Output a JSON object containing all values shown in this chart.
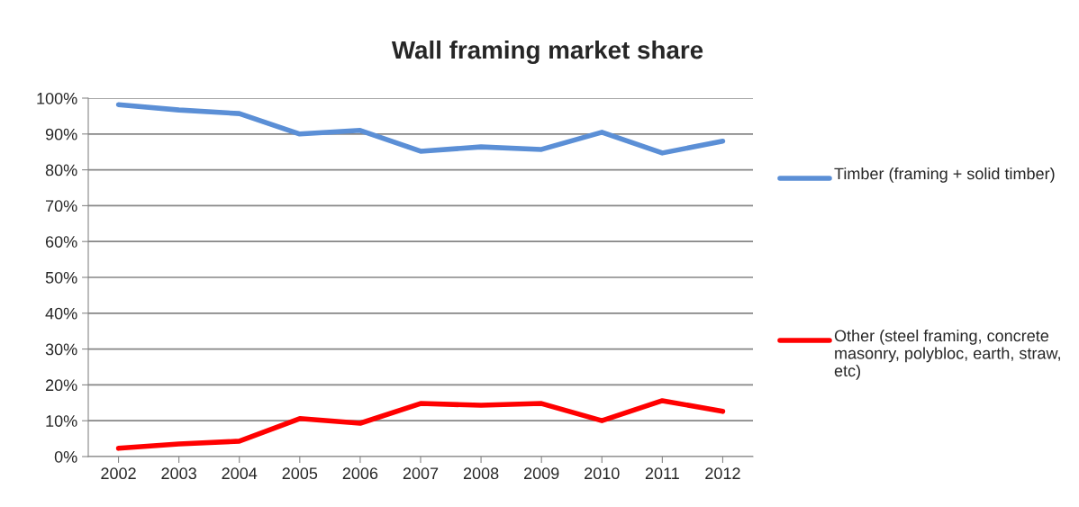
{
  "chart_data": {
    "type": "line",
    "title": "Wall framing market share",
    "categories": [
      "2002",
      "2003",
      "2004",
      "2005",
      "2006",
      "2007",
      "2008",
      "2009",
      "2010",
      "2011",
      "2012"
    ],
    "series": [
      {
        "name": "Timber (framing + solid timber)",
        "color": "#5b8fd6",
        "values": [
          98.2,
          96.7,
          95.7,
          90,
          91,
          85.2,
          86.4,
          85.7,
          90.5,
          84.7,
          88
        ]
      },
      {
        "name": "Other (steel framing, concrete masonry, polybloc, earth, straw, etc)",
        "color": "#ff0000",
        "values": [
          2.3,
          3.5,
          4.3,
          10.6,
          9.3,
          14.8,
          14.3,
          14.8,
          10,
          15.6,
          12.6
        ]
      }
    ],
    "ylim": [
      0,
      100
    ],
    "yticks": [
      {
        "value": 0,
        "label": "0%"
      },
      {
        "value": 10,
        "label": "10%"
      },
      {
        "value": 20,
        "label": "20%"
      },
      {
        "value": 30,
        "label": "30%"
      },
      {
        "value": 40,
        "label": "40%"
      },
      {
        "value": 50,
        "label": "50%"
      },
      {
        "value": 60,
        "label": "60%"
      },
      {
        "value": 70,
        "label": "70%"
      },
      {
        "value": 80,
        "label": "80%"
      },
      {
        "value": 90,
        "label": "90%"
      },
      {
        "value": 100,
        "label": "100%"
      }
    ],
    "grid": "y",
    "legend": "right",
    "marker": "none",
    "line_style": "solid"
  }
}
